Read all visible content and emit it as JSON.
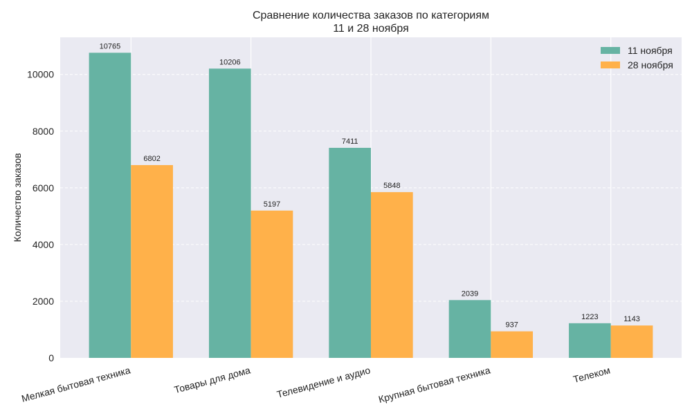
{
  "chart_data": {
    "type": "bar",
    "title": "Сравнение количества заказов по категориям",
    "subtitle": "11 и 28 ноября",
    "xlabel": "",
    "ylabel": "Количество заказов",
    "categories": [
      "Мелкая бытовая техника",
      "Товары для дома",
      "Телевидение и аудио",
      "Крупная бытовая техника",
      "Телеком"
    ],
    "series": [
      {
        "name": "11 ноября",
        "color": "#66b3a3",
        "values": [
          10765,
          10206,
          7411,
          2039,
          1223
        ]
      },
      {
        "name": "28 ноября",
        "color": "#ffb14a",
        "values": [
          6802,
          5197,
          5848,
          937,
          1143
        ]
      }
    ],
    "ylim": [
      0,
      11310
    ],
    "yticks": [
      0,
      2000,
      4000,
      6000,
      8000,
      10000
    ],
    "grid": true,
    "legend": "top-right"
  }
}
